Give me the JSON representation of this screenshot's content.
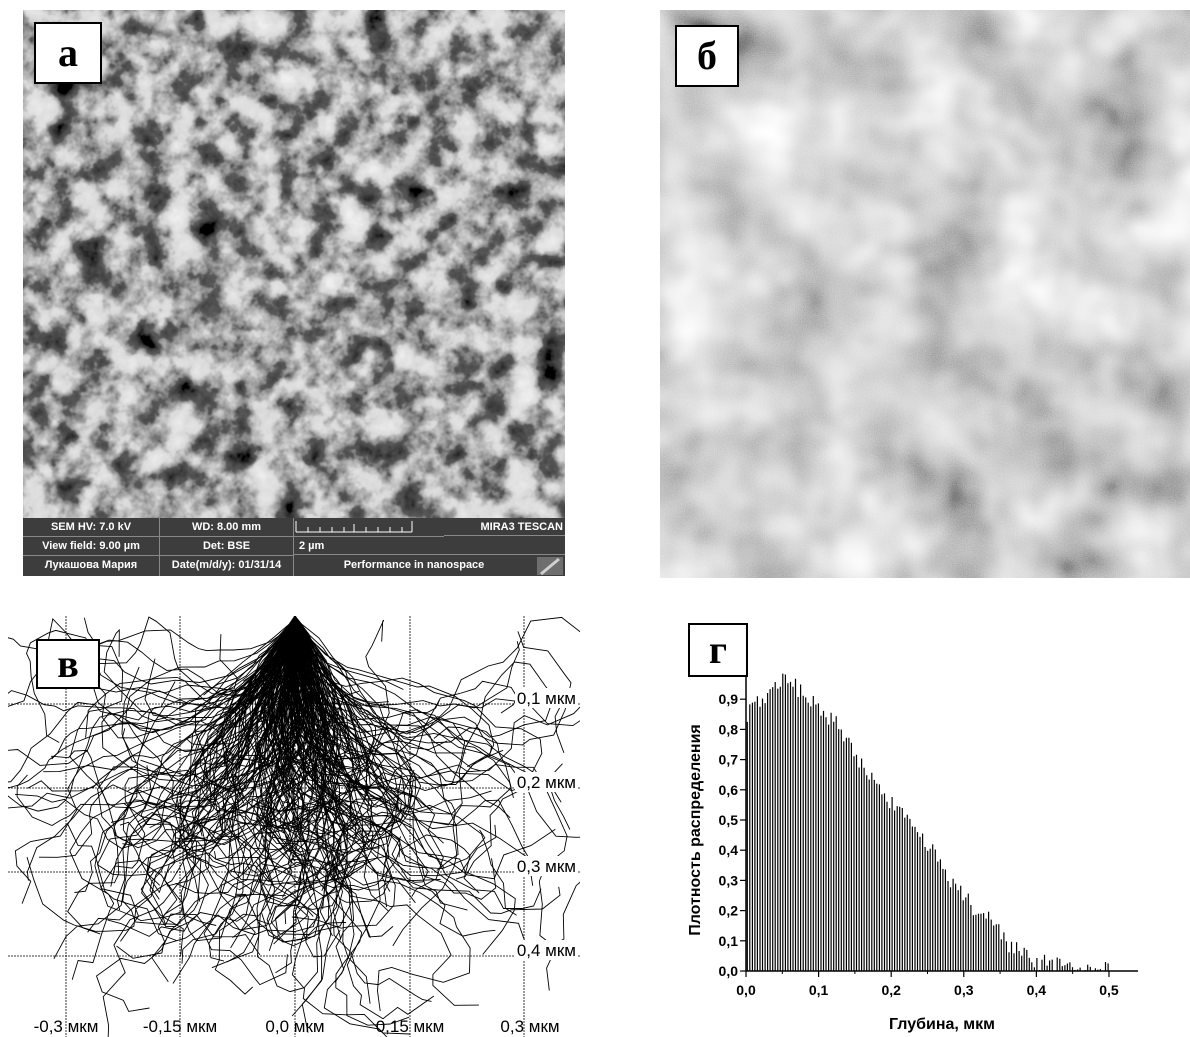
{
  "panels": {
    "a": {
      "letter": "а"
    },
    "b": {
      "letter": "б"
    },
    "v": {
      "letter": "в"
    },
    "g": {
      "letter": "г"
    }
  },
  "sem_info": {
    "hv": "SEM HV: 7.0 kV",
    "wd": "WD: 8.00 mm",
    "brand": "MIRA3 TESCAN",
    "view_field": "View field: 9.00 µm",
    "det": "Det: BSE",
    "scale": "2 µm",
    "operator": "Лукашова Мария",
    "date": "Date(m/d/y): 01/31/14",
    "slogan": "Performance in nanospace"
  },
  "trajectory_labels": {
    "depth": [
      "0,1 мкм",
      "0,2 мкм",
      "0,3 мкм",
      "0,4 мкм"
    ],
    "lateral": [
      "-0,3 мкм",
      "-0,15 мкм",
      "0,0 мкм",
      "0,15 мкм",
      "0,3 мкм"
    ]
  },
  "chart_data": {
    "type": "bar",
    "xlabel": "Глубина, мкм",
    "ylabel": "Плотность распределения",
    "xlim": [
      0,
      0.54
    ],
    "ylim": [
      0,
      1.0
    ],
    "xticks": [
      "0,0",
      "0,1",
      "0,2",
      "0,3",
      "0,4",
      "0,5"
    ],
    "yticks": [
      "0,0",
      "0,1",
      "0,2",
      "0,3",
      "0,4",
      "0,5",
      "0,6",
      "0,7",
      "0,8",
      "0,9"
    ],
    "bin_width": 0.0035,
    "envelope": {
      "x": [
        0,
        0.02,
        0.05,
        0.08,
        0.1,
        0.13,
        0.15,
        0.18,
        0.2,
        0.22,
        0.25,
        0.28,
        0.3,
        0.33,
        0.35,
        0.38,
        0.4,
        0.42,
        0.45,
        0.47,
        0.5
      ],
      "y": [
        0.85,
        0.9,
        0.97,
        0.92,
        0.88,
        0.8,
        0.72,
        0.62,
        0.55,
        0.5,
        0.42,
        0.31,
        0.24,
        0.18,
        0.12,
        0.05,
        0.03,
        0.02,
        0.01,
        0.003,
        0
      ]
    }
  }
}
